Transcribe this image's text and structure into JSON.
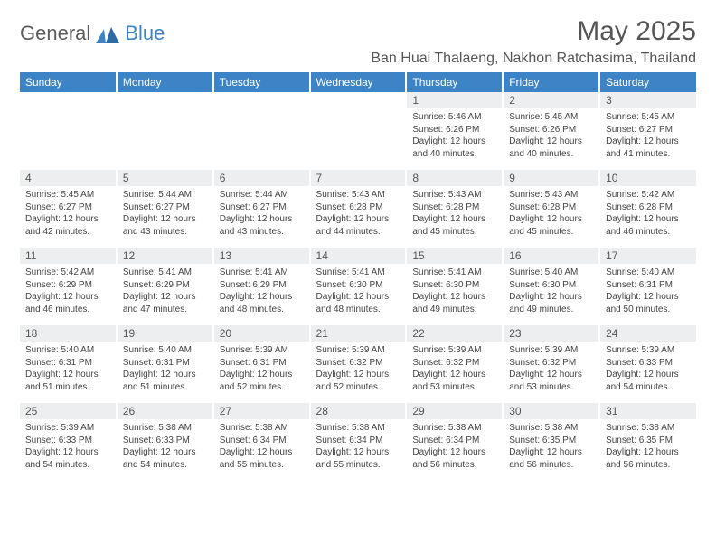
{
  "brand": {
    "part1": "General",
    "part2": "Blue"
  },
  "colors": {
    "header_bg": "#3d84c6",
    "header_text": "#ffffff",
    "daynum_bg": "#eceef0",
    "text": "#444444",
    "title": "#555555",
    "background": "#ffffff"
  },
  "typography": {
    "month_title_size": 30,
    "location_size": 16,
    "dayheader_size": 12,
    "body_size": 10,
    "family": "Arial"
  },
  "month_title": "May 2025",
  "location": "Ban Huai Thalaeng, Nakhon Ratchasima, Thailand",
  "weekday_labels": [
    "Sunday",
    "Monday",
    "Tuesday",
    "Wednesday",
    "Thursday",
    "Friday",
    "Saturday"
  ],
  "labels": {
    "sunrise_prefix": "Sunrise: ",
    "sunset_prefix": "Sunset: ",
    "daylight_prefix": "Daylight: "
  },
  "weeks": [
    [
      null,
      null,
      null,
      null,
      {
        "day": "1",
        "sunrise": "5:46 AM",
        "sunset": "6:26 PM",
        "daylight": "12 hours and 40 minutes."
      },
      {
        "day": "2",
        "sunrise": "5:45 AM",
        "sunset": "6:26 PM",
        "daylight": "12 hours and 40 minutes."
      },
      {
        "day": "3",
        "sunrise": "5:45 AM",
        "sunset": "6:27 PM",
        "daylight": "12 hours and 41 minutes."
      }
    ],
    [
      {
        "day": "4",
        "sunrise": "5:45 AM",
        "sunset": "6:27 PM",
        "daylight": "12 hours and 42 minutes."
      },
      {
        "day": "5",
        "sunrise": "5:44 AM",
        "sunset": "6:27 PM",
        "daylight": "12 hours and 43 minutes."
      },
      {
        "day": "6",
        "sunrise": "5:44 AM",
        "sunset": "6:27 PM",
        "daylight": "12 hours and 43 minutes."
      },
      {
        "day": "7",
        "sunrise": "5:43 AM",
        "sunset": "6:28 PM",
        "daylight": "12 hours and 44 minutes."
      },
      {
        "day": "8",
        "sunrise": "5:43 AM",
        "sunset": "6:28 PM",
        "daylight": "12 hours and 45 minutes."
      },
      {
        "day": "9",
        "sunrise": "5:43 AM",
        "sunset": "6:28 PM",
        "daylight": "12 hours and 45 minutes."
      },
      {
        "day": "10",
        "sunrise": "5:42 AM",
        "sunset": "6:28 PM",
        "daylight": "12 hours and 46 minutes."
      }
    ],
    [
      {
        "day": "11",
        "sunrise": "5:42 AM",
        "sunset": "6:29 PM",
        "daylight": "12 hours and 46 minutes."
      },
      {
        "day": "12",
        "sunrise": "5:41 AM",
        "sunset": "6:29 PM",
        "daylight": "12 hours and 47 minutes."
      },
      {
        "day": "13",
        "sunrise": "5:41 AM",
        "sunset": "6:29 PM",
        "daylight": "12 hours and 48 minutes."
      },
      {
        "day": "14",
        "sunrise": "5:41 AM",
        "sunset": "6:30 PM",
        "daylight": "12 hours and 48 minutes."
      },
      {
        "day": "15",
        "sunrise": "5:41 AM",
        "sunset": "6:30 PM",
        "daylight": "12 hours and 49 minutes."
      },
      {
        "day": "16",
        "sunrise": "5:40 AM",
        "sunset": "6:30 PM",
        "daylight": "12 hours and 49 minutes."
      },
      {
        "day": "17",
        "sunrise": "5:40 AM",
        "sunset": "6:31 PM",
        "daylight": "12 hours and 50 minutes."
      }
    ],
    [
      {
        "day": "18",
        "sunrise": "5:40 AM",
        "sunset": "6:31 PM",
        "daylight": "12 hours and 51 minutes."
      },
      {
        "day": "19",
        "sunrise": "5:40 AM",
        "sunset": "6:31 PM",
        "daylight": "12 hours and 51 minutes."
      },
      {
        "day": "20",
        "sunrise": "5:39 AM",
        "sunset": "6:31 PM",
        "daylight": "12 hours and 52 minutes."
      },
      {
        "day": "21",
        "sunrise": "5:39 AM",
        "sunset": "6:32 PM",
        "daylight": "12 hours and 52 minutes."
      },
      {
        "day": "22",
        "sunrise": "5:39 AM",
        "sunset": "6:32 PM",
        "daylight": "12 hours and 53 minutes."
      },
      {
        "day": "23",
        "sunrise": "5:39 AM",
        "sunset": "6:32 PM",
        "daylight": "12 hours and 53 minutes."
      },
      {
        "day": "24",
        "sunrise": "5:39 AM",
        "sunset": "6:33 PM",
        "daylight": "12 hours and 54 minutes."
      }
    ],
    [
      {
        "day": "25",
        "sunrise": "5:39 AM",
        "sunset": "6:33 PM",
        "daylight": "12 hours and 54 minutes."
      },
      {
        "day": "26",
        "sunrise": "5:38 AM",
        "sunset": "6:33 PM",
        "daylight": "12 hours and 54 minutes."
      },
      {
        "day": "27",
        "sunrise": "5:38 AM",
        "sunset": "6:34 PM",
        "daylight": "12 hours and 55 minutes."
      },
      {
        "day": "28",
        "sunrise": "5:38 AM",
        "sunset": "6:34 PM",
        "daylight": "12 hours and 55 minutes."
      },
      {
        "day": "29",
        "sunrise": "5:38 AM",
        "sunset": "6:34 PM",
        "daylight": "12 hours and 56 minutes."
      },
      {
        "day": "30",
        "sunrise": "5:38 AM",
        "sunset": "6:35 PM",
        "daylight": "12 hours and 56 minutes."
      },
      {
        "day": "31",
        "sunrise": "5:38 AM",
        "sunset": "6:35 PM",
        "daylight": "12 hours and 56 minutes."
      }
    ]
  ]
}
